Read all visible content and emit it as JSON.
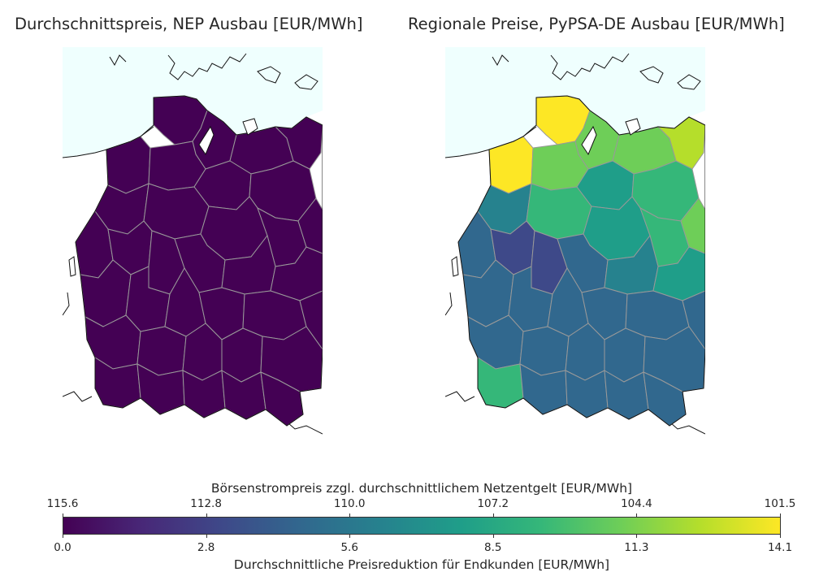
{
  "panels": {
    "left": {
      "title": "Durchschnittspreis, NEP Ausbau [EUR/MWh]"
    },
    "right": {
      "title": "Regionale Preise, PyPSA-DE Ausbau [EUR/MWh]"
    }
  },
  "colorbar": {
    "colormap": "viridis",
    "top_label": "Börsenstrompreis zzgl. durchschnittlichem Netzentgelt [EUR/MWh]",
    "bottom_label": "Durchschnittliche Preisreduktion für Endkunden [EUR/MWh]",
    "top_ticks": [
      "115.6",
      "112.8",
      "110.0",
      "107.2",
      "104.4",
      "101.5"
    ],
    "bottom_ticks": [
      "0.0",
      "2.8",
      "5.6",
      "8.5",
      "11.3",
      "14.1"
    ],
    "range": [
      0.0,
      14.1
    ]
  },
  "colors": {
    "sea": "#effffe",
    "border": "#999999",
    "coast": "#111111",
    "uniform_fill": "#440154"
  }
}
